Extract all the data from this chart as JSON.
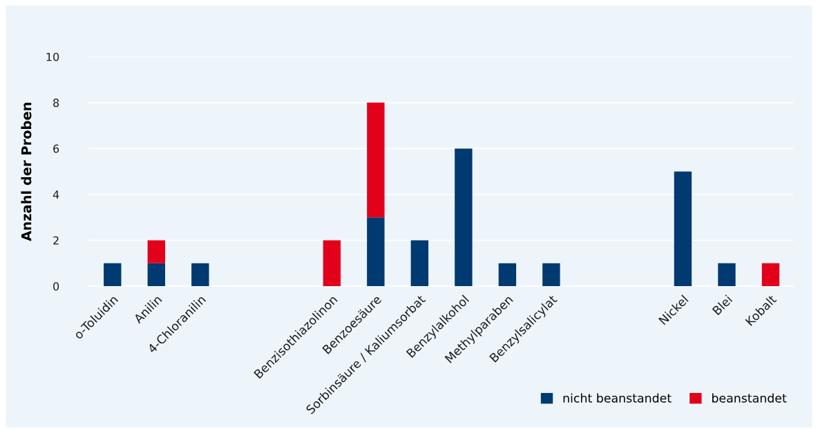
{
  "chart_data": {
    "type": "bar",
    "stacked": true,
    "ylabel": "Anzahl der Proben",
    "categories": [
      "o-Toluidin",
      "Anilin",
      "4-Chloranilin",
      null,
      null,
      "Benzisothiazolinon",
      "Benzoesäure",
      "Sorbinsäure / Kaliumsorbat",
      "Benzylalkohol",
      "Methylparaben",
      "Benzylsalicylat",
      null,
      null,
      "Nickel",
      "Blei",
      "Kobalt"
    ],
    "series": [
      {
        "name": "nicht beanstandet",
        "color": "#003a70",
        "values": [
          1,
          1,
          1,
          null,
          null,
          0,
          3,
          2,
          6,
          1,
          1,
          null,
          null,
          5,
          1,
          0
        ]
      },
      {
        "name": "beanstandet",
        "color": "#e2001a",
        "values": [
          0,
          1,
          0,
          null,
          null,
          2,
          5,
          0,
          0,
          0,
          0,
          null,
          null,
          0,
          0,
          1
        ]
      }
    ],
    "ylim": [
      0,
      10
    ],
    "yticks": [
      0,
      2,
      4,
      6,
      8,
      10
    ],
    "grid": "y",
    "legend": "bottom right"
  }
}
